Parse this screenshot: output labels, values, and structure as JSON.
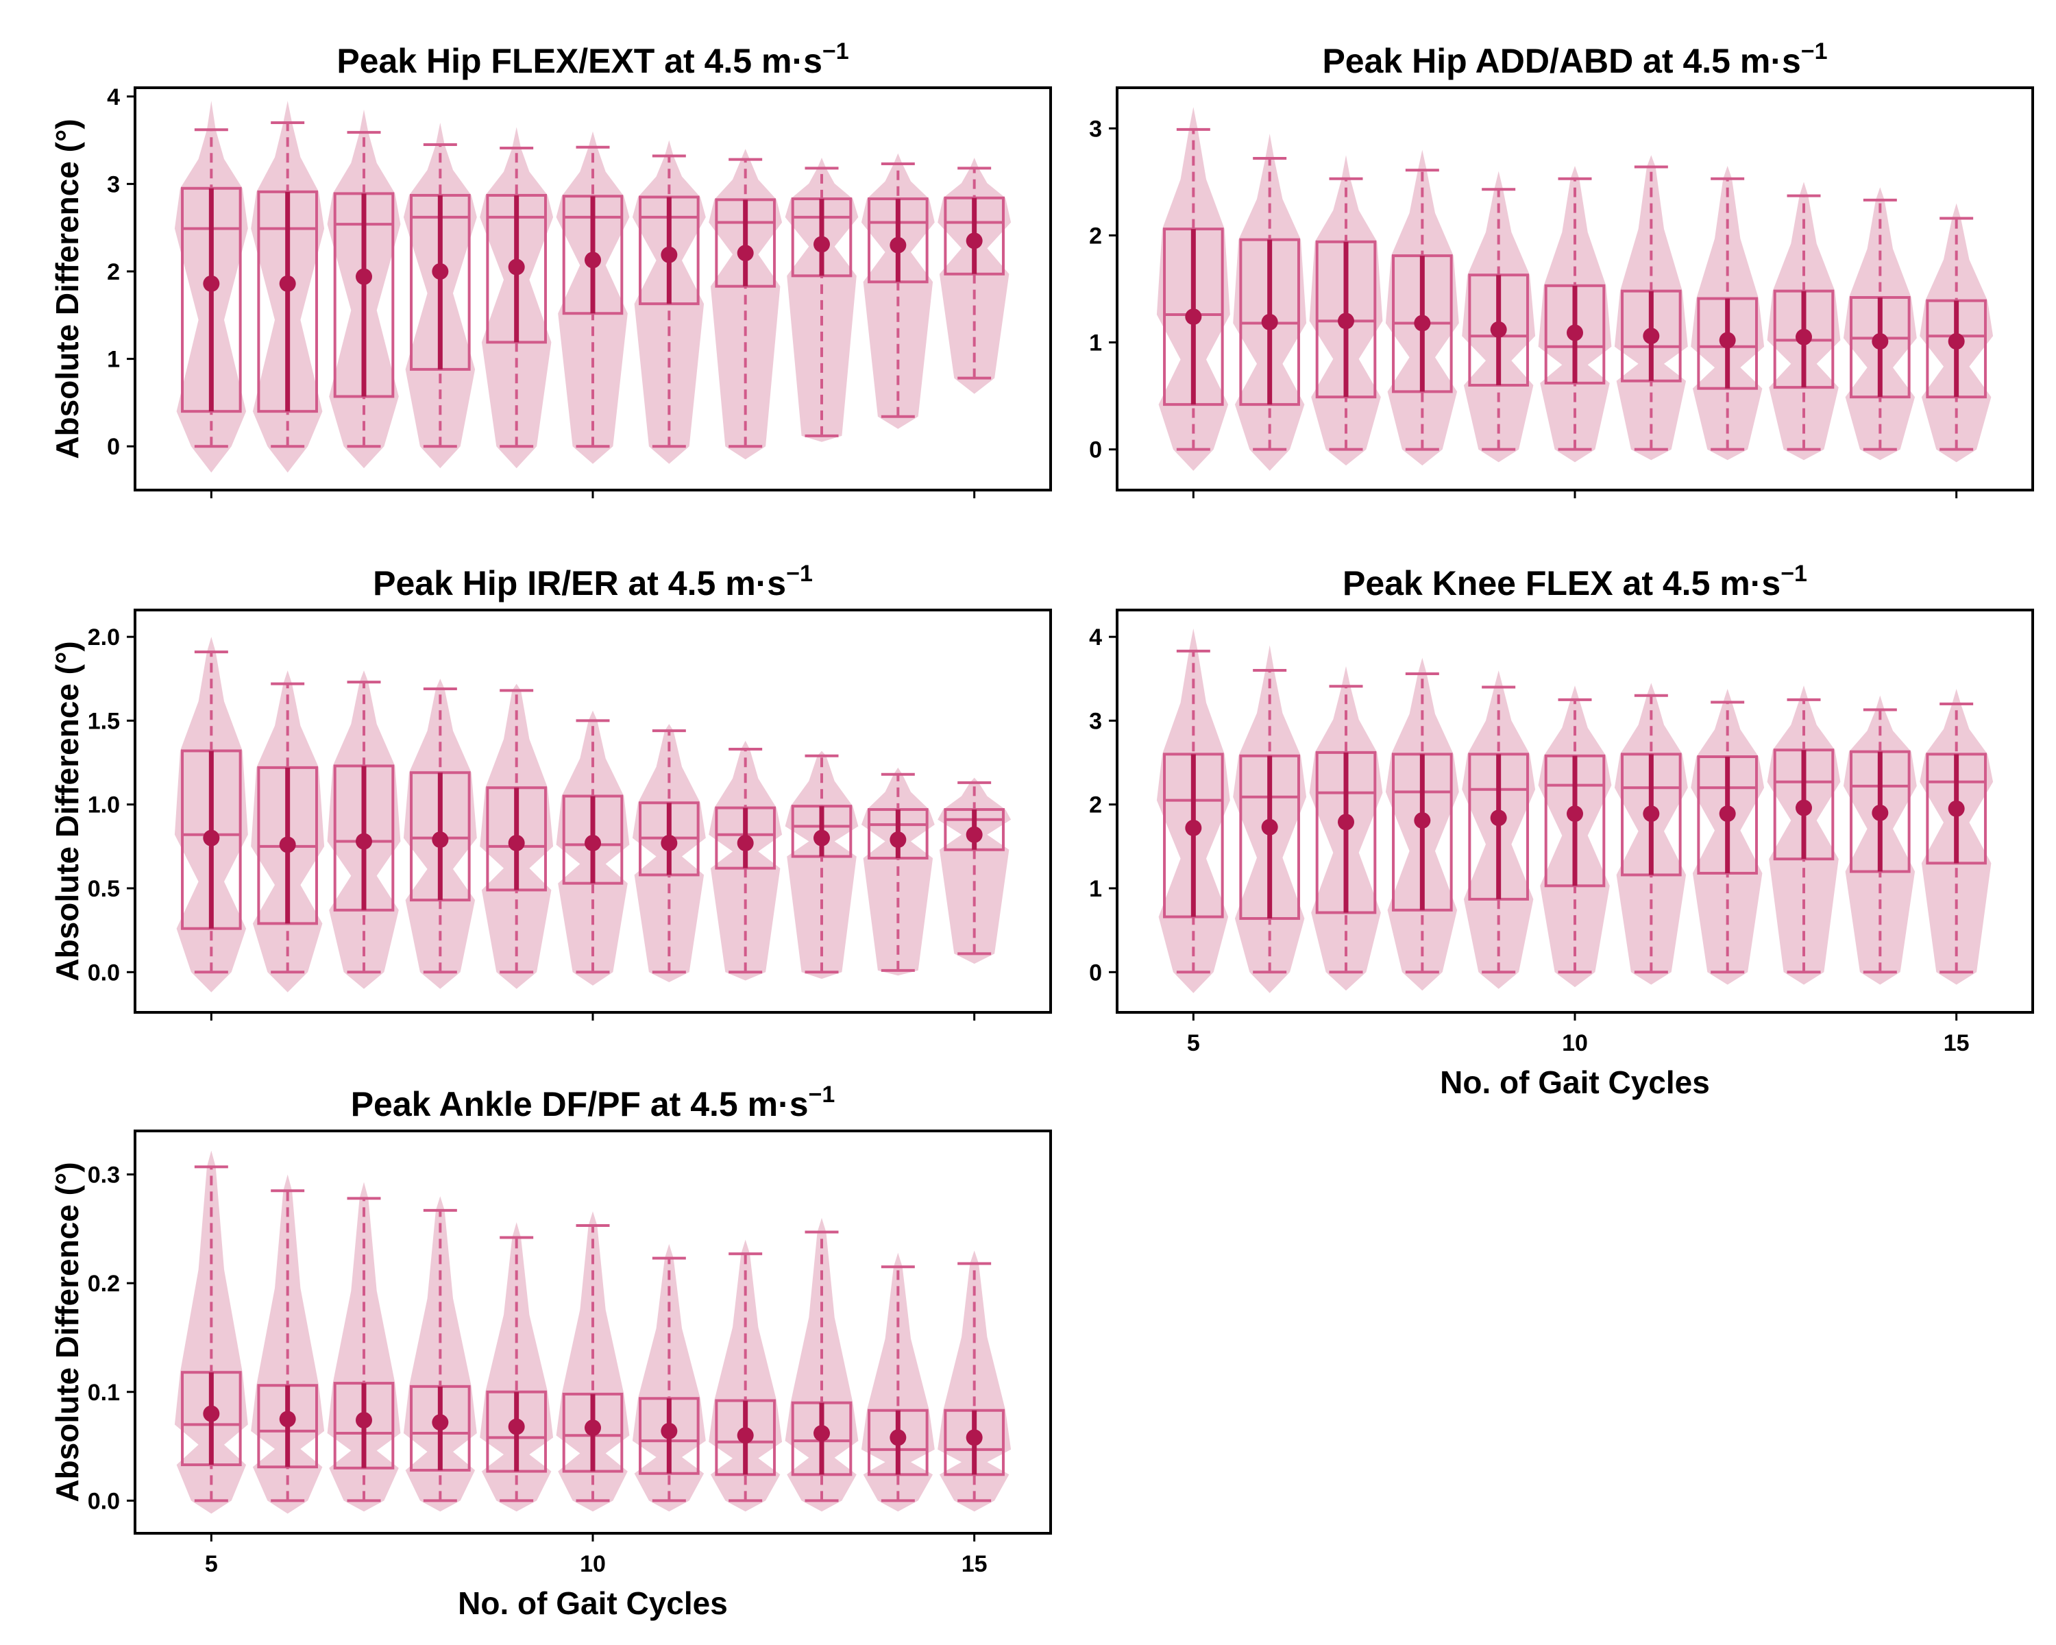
{
  "colors": {
    "violin": "#e8b8c9",
    "box": "#d15a8a",
    "mean": "#b0174e",
    "axis": "#000000"
  },
  "chart_data": [
    {
      "type": "violin-box",
      "title": "Peak Hip FLEX/EXT at 4.5 m·s",
      "title_sup": "−1",
      "xlabel": "",
      "ylabel": "Absolute Difference (°)",
      "ylim": [
        -0.5,
        4.1
      ],
      "yticks": [
        "0",
        "1",
        "2",
        "3",
        "4"
      ],
      "xticks": [],
      "x": [
        5,
        6,
        7,
        8,
        9,
        10,
        11,
        12,
        13,
        14,
        15
      ],
      "whisker_low": [
        0,
        0,
        0,
        0,
        0,
        0,
        0,
        0,
        0.12,
        0.34,
        0.78
      ],
      "q1": [
        0.4,
        0.4,
        0.57,
        0.88,
        1.19,
        1.52,
        1.63,
        1.83,
        1.95,
        1.88,
        1.97
      ],
      "median": [
        2.49,
        2.49,
        2.54,
        2.62,
        2.62,
        2.62,
        2.62,
        2.56,
        2.62,
        2.56,
        2.56
      ],
      "q3": [
        2.95,
        2.91,
        2.89,
        2.87,
        2.87,
        2.86,
        2.85,
        2.82,
        2.83,
        2.83,
        2.84
      ],
      "whisker_high": [
        3.62,
        3.7,
        3.59,
        3.45,
        3.41,
        3.42,
        3.32,
        3.28,
        3.18,
        3.23,
        3.18
      ],
      "mean": [
        1.86,
        1.86,
        1.94,
        2.0,
        2.05,
        2.13,
        2.19,
        2.21,
        2.31,
        2.3,
        2.35
      ],
      "violin_min": [
        -0.3,
        -0.3,
        -0.25,
        -0.25,
        -0.25,
        -0.2,
        -0.2,
        -0.15,
        0.05,
        0.2,
        0.6
      ],
      "violin_max": [
        3.95,
        3.95,
        3.85,
        3.7,
        3.65,
        3.6,
        3.5,
        3.4,
        3.3,
        3.35,
        3.3
      ]
    },
    {
      "type": "violin-box",
      "title": "Peak Hip ADD/ABD at 4.5 m·s",
      "title_sup": "−1",
      "xlabel": "",
      "ylabel": "",
      "ylim": [
        -0.38,
        3.38
      ],
      "yticks": [
        "0",
        "1",
        "2",
        "3"
      ],
      "xticks": [],
      "x": [
        5,
        6,
        7,
        8,
        9,
        10,
        11,
        12,
        13,
        14,
        15
      ],
      "whisker_low": [
        0,
        0,
        0,
        0,
        0,
        0,
        0,
        0,
        0,
        0,
        0
      ],
      "q1": [
        0.42,
        0.42,
        0.49,
        0.54,
        0.6,
        0.62,
        0.64,
        0.57,
        0.58,
        0.49,
        0.49
      ],
      "median": [
        1.26,
        1.18,
        1.2,
        1.18,
        1.06,
        0.96,
        0.96,
        0.96,
        1.02,
        1.04,
        1.06
      ],
      "q3": [
        2.06,
        1.96,
        1.94,
        1.81,
        1.63,
        1.53,
        1.48,
        1.41,
        1.48,
        1.42,
        1.39
      ],
      "whisker_high": [
        2.99,
        2.72,
        2.53,
        2.61,
        2.43,
        2.53,
        2.64,
        2.53,
        2.37,
        2.33,
        2.16
      ],
      "mean": [
        1.24,
        1.19,
        1.2,
        1.18,
        1.12,
        1.09,
        1.06,
        1.02,
        1.05,
        1.01,
        1.01
      ],
      "violin_min": [
        -0.2,
        -0.2,
        -0.15,
        -0.15,
        -0.12,
        -0.12,
        -0.1,
        -0.1,
        -0.1,
        -0.1,
        -0.12
      ],
      "violin_max": [
        3.2,
        2.95,
        2.75,
        2.8,
        2.6,
        2.65,
        2.75,
        2.65,
        2.5,
        2.45,
        2.3
      ]
    },
    {
      "type": "violin-box",
      "title": "Peak Hip IR/ER at 4.5 m·s",
      "title_sup": "−1",
      "xlabel": "",
      "ylabel": "Absolute Difference (°)",
      "ylim": [
        -0.24,
        2.16
      ],
      "yticks": [
        "0.0",
        "0.5",
        "1.0",
        "1.5",
        "2.0"
      ],
      "xticks": [],
      "x": [
        5,
        6,
        7,
        8,
        9,
        10,
        11,
        12,
        13,
        14,
        15
      ],
      "whisker_low": [
        0,
        0,
        0,
        0,
        0,
        0,
        0,
        0,
        0,
        0.01,
        0.11
      ],
      "q1": [
        0.26,
        0.29,
        0.37,
        0.43,
        0.49,
        0.53,
        0.58,
        0.62,
        0.69,
        0.68,
        0.73
      ],
      "median": [
        0.82,
        0.75,
        0.78,
        0.8,
        0.75,
        0.76,
        0.8,
        0.82,
        0.87,
        0.88,
        0.91
      ],
      "q3": [
        1.32,
        1.22,
        1.23,
        1.19,
        1.1,
        1.05,
        1.01,
        0.98,
        0.99,
        0.97,
        0.97
      ],
      "whisker_high": [
        1.91,
        1.72,
        1.73,
        1.69,
        1.68,
        1.5,
        1.44,
        1.33,
        1.29,
        1.18,
        1.13
      ],
      "mean": [
        0.8,
        0.76,
        0.78,
        0.79,
        0.77,
        0.77,
        0.77,
        0.77,
        0.8,
        0.79,
        0.82
      ],
      "violin_min": [
        -0.12,
        -0.12,
        -0.1,
        -0.1,
        -0.1,
        -0.08,
        -0.06,
        -0.05,
        -0.04,
        -0.02,
        0.05
      ],
      "violin_max": [
        2.0,
        1.8,
        1.8,
        1.75,
        1.72,
        1.56,
        1.48,
        1.38,
        1.32,
        1.22,
        1.16
      ]
    },
    {
      "type": "violin-box",
      "title": "Peak Knee FLEX at 4.5 m·s",
      "title_sup": "−1",
      "xlabel": "No. of Gait Cycles",
      "ylabel": "",
      "ylim": [
        -0.48,
        4.32
      ],
      "yticks": [
        "0",
        "1",
        "2",
        "3",
        "4"
      ],
      "xticks": [
        "5",
        "10",
        "15"
      ],
      "x": [
        5,
        6,
        7,
        8,
        9,
        10,
        11,
        12,
        13,
        14,
        15
      ],
      "whisker_low": [
        0,
        0,
        0,
        0,
        0,
        0,
        0,
        0,
        0,
        0,
        0
      ],
      "q1": [
        0.66,
        0.64,
        0.71,
        0.74,
        0.87,
        1.03,
        1.16,
        1.18,
        1.35,
        1.2,
        1.3
      ],
      "median": [
        2.05,
        2.09,
        2.14,
        2.15,
        2.18,
        2.23,
        2.2,
        2.2,
        2.27,
        2.22,
        2.27
      ],
      "q3": [
        2.6,
        2.58,
        2.62,
        2.6,
        2.6,
        2.58,
        2.6,
        2.57,
        2.65,
        2.63,
        2.6
      ],
      "whisker_high": [
        3.83,
        3.6,
        3.41,
        3.56,
        3.4,
        3.25,
        3.3,
        3.22,
        3.25,
        3.13,
        3.2
      ],
      "mean": [
        1.72,
        1.73,
        1.79,
        1.81,
        1.84,
        1.89,
        1.89,
        1.89,
        1.96,
        1.9,
        1.95
      ],
      "violin_min": [
        -0.25,
        -0.25,
        -0.22,
        -0.22,
        -0.2,
        -0.18,
        -0.15,
        -0.15,
        -0.15,
        -0.15,
        -0.15
      ],
      "violin_max": [
        4.1,
        3.9,
        3.65,
        3.75,
        3.6,
        3.42,
        3.45,
        3.38,
        3.42,
        3.3,
        3.38
      ]
    },
    {
      "type": "violin-box",
      "title": "Peak Ankle DF/PF at 4.5 m·s",
      "title_sup": "−1",
      "xlabel": "No. of Gait Cycles",
      "ylabel": "Absolute Difference (°)",
      "ylim": [
        -0.03,
        0.34
      ],
      "yticks": [
        "0.0",
        "0.1",
        "0.2",
        "0.3"
      ],
      "xticks": [
        "5",
        "10",
        "15"
      ],
      "x": [
        5,
        6,
        7,
        8,
        9,
        10,
        11,
        12,
        13,
        14,
        15
      ],
      "whisker_low": [
        0,
        0,
        0,
        0,
        0,
        0,
        0,
        0,
        0,
        0,
        0
      ],
      "q1": [
        0.033,
        0.031,
        0.03,
        0.028,
        0.027,
        0.027,
        0.025,
        0.024,
        0.024,
        0.024,
        0.024
      ],
      "median": [
        0.07,
        0.064,
        0.062,
        0.062,
        0.058,
        0.06,
        0.055,
        0.054,
        0.055,
        0.047,
        0.047
      ],
      "q3": [
        0.118,
        0.106,
        0.108,
        0.105,
        0.1,
        0.098,
        0.094,
        0.092,
        0.09,
        0.083,
        0.083
      ],
      "whisker_high": [
        0.307,
        0.285,
        0.278,
        0.267,
        0.242,
        0.253,
        0.223,
        0.227,
        0.247,
        0.215,
        0.218
      ],
      "mean": [
        0.08,
        0.075,
        0.074,
        0.072,
        0.068,
        0.067,
        0.064,
        0.06,
        0.062,
        0.058,
        0.058
      ],
      "violin_min": [
        -0.012,
        -0.012,
        -0.01,
        -0.01,
        -0.01,
        -0.01,
        -0.01,
        -0.01,
        -0.01,
        -0.01,
        -0.01
      ],
      "violin_max": [
        0.322,
        0.3,
        0.293,
        0.28,
        0.256,
        0.266,
        0.236,
        0.24,
        0.26,
        0.228,
        0.23
      ]
    }
  ]
}
